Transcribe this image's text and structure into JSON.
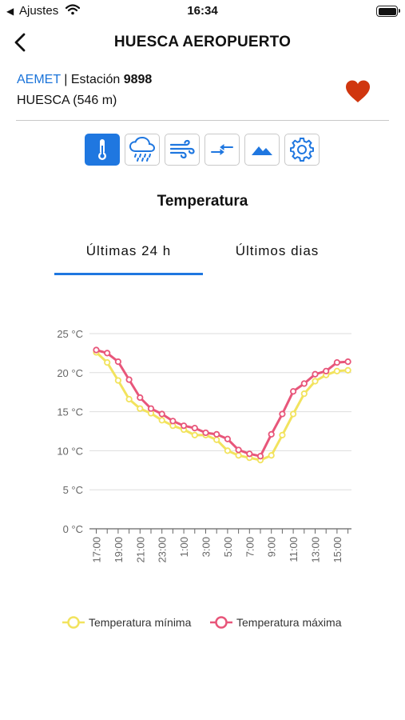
{
  "status_bar": {
    "back_arrow": "◀",
    "carrier": "Ajustes",
    "time": "16:34",
    "icons": [
      "wifi-icon",
      "battery-icon"
    ]
  },
  "header": {
    "title": "HUESCA AEROPUERTO",
    "back_icon": "chevron-left-icon"
  },
  "station": {
    "source": "AEMET",
    "separator": " | Estación ",
    "number": "9898",
    "location": "HUESCA (546 m)",
    "favorite_icon": "heart-icon",
    "favorite_color": "#d0360f"
  },
  "toolbar": {
    "items": [
      {
        "icon": "thermometer-icon",
        "active": true
      },
      {
        "icon": "rain-cloud-icon",
        "active": false
      },
      {
        "icon": "wind-icon",
        "active": false
      },
      {
        "icon": "pressure-arrows-icon",
        "active": false
      },
      {
        "icon": "mountain-icon",
        "active": false
      },
      {
        "icon": "gear-icon",
        "active": false
      }
    ],
    "accent": "#1f77e0"
  },
  "section": {
    "title": "Temperatura"
  },
  "tabs": [
    {
      "label": "Últimas 24 h",
      "selected": true
    },
    {
      "label": "Últimos dias",
      "selected": false
    }
  ],
  "chart_data": {
    "type": "line",
    "x": [
      "17:00",
      "18:00",
      "19:00",
      "20:00",
      "21:00",
      "22:00",
      "23:00",
      "0:00",
      "1:00",
      "2:00",
      "3:00",
      "4:00",
      "5:00",
      "6:00",
      "7:00",
      "8:00",
      "9:00",
      "10:00",
      "11:00",
      "12:00",
      "13:00",
      "14:00",
      "15:00",
      "16:00"
    ],
    "tick_labels": [
      "17:00",
      "19:00",
      "21:00",
      "23:00",
      "1:00",
      "3:00",
      "5:00",
      "7:00",
      "9:00",
      "11:00",
      "13:00",
      "15:00"
    ],
    "ylim": [
      0,
      25
    ],
    "y_ticks": [
      "0 °C",
      "5 °C",
      "10 °C",
      "15 °C",
      "20 °C",
      "25 °C"
    ],
    "grid": true,
    "legend_position": "bottom",
    "series": [
      {
        "name": "Temperatura mínima",
        "color": "#f2e35e",
        "values": [
          22.6,
          21.3,
          19.0,
          16.6,
          15.4,
          14.8,
          13.9,
          13.2,
          12.7,
          12.0,
          12.0,
          11.4,
          10.0,
          9.4,
          9.1,
          8.8,
          9.4,
          12.0,
          14.7,
          17.3,
          18.9,
          19.7,
          20.2,
          20.3
        ]
      },
      {
        "name": "Temperatura máxima",
        "color": "#e8567a",
        "values": [
          22.9,
          22.5,
          21.4,
          19.1,
          16.8,
          15.4,
          14.7,
          13.8,
          13.2,
          12.9,
          12.3,
          12.1,
          11.5,
          10.1,
          9.6,
          9.3,
          12.1,
          14.7,
          17.6,
          18.6,
          19.8,
          20.2,
          21.3,
          21.4
        ]
      }
    ]
  }
}
